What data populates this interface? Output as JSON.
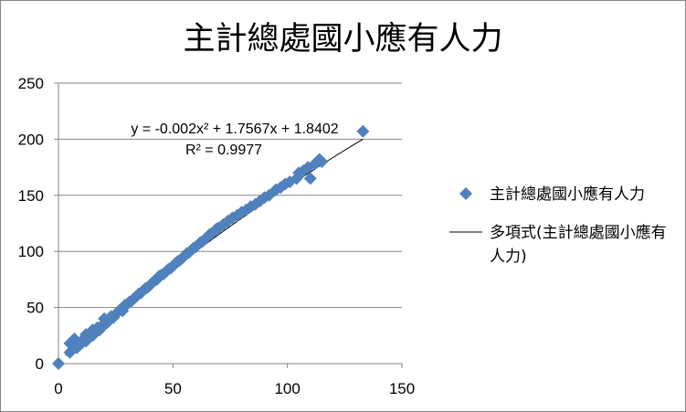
{
  "chart_data": {
    "type": "scatter",
    "title": "主計總處國小應有人力",
    "xlabel": "",
    "ylabel": "",
    "xlim": [
      0,
      150
    ],
    "ylim": [
      0,
      250
    ],
    "x_ticks": [
      "0",
      "50",
      "100",
      "150"
    ],
    "y_ticks": [
      "0",
      "50",
      "100",
      "150",
      "200",
      "250"
    ],
    "grid": "horizontal",
    "legend_position": "right",
    "series": [
      {
        "name": "主計總處國小應有人力",
        "marker": "diamond",
        "color": "#4F81BD",
        "points": [
          [
            0,
            0
          ],
          [
            5,
            10
          ],
          [
            5,
            18
          ],
          [
            6,
            20
          ],
          [
            7,
            22
          ],
          [
            7,
            15
          ],
          [
            8,
            14
          ],
          [
            8,
            18
          ],
          [
            9,
            16
          ],
          [
            10,
            18
          ],
          [
            11,
            22
          ],
          [
            12,
            20
          ],
          [
            12,
            26
          ],
          [
            13,
            24
          ],
          [
            14,
            28
          ],
          [
            15,
            25
          ],
          [
            15,
            30
          ],
          [
            16,
            28
          ],
          [
            17,
            32
          ],
          [
            18,
            30
          ],
          [
            19,
            34
          ],
          [
            20,
            35
          ],
          [
            20,
            40
          ],
          [
            21,
            36
          ],
          [
            22,
            38
          ],
          [
            23,
            42
          ],
          [
            24,
            41
          ],
          [
            25,
            44
          ],
          [
            26,
            46
          ],
          [
            27,
            48
          ],
          [
            28,
            47
          ],
          [
            29,
            52
          ],
          [
            30,
            53
          ],
          [
            31,
            55
          ],
          [
            32,
            56
          ],
          [
            33,
            58
          ],
          [
            34,
            60
          ],
          [
            35,
            62
          ],
          [
            36,
            63
          ],
          [
            37,
            65
          ],
          [
            38,
            67
          ],
          [
            39,
            68
          ],
          [
            40,
            70
          ],
          [
            41,
            72
          ],
          [
            42,
            74
          ],
          [
            43,
            75
          ],
          [
            44,
            78
          ],
          [
            45,
            79
          ],
          [
            46,
            80
          ],
          [
            47,
            82
          ],
          [
            48,
            84
          ],
          [
            49,
            85
          ],
          [
            50,
            87
          ],
          [
            51,
            89
          ],
          [
            52,
            91
          ],
          [
            53,
            92
          ],
          [
            54,
            94
          ],
          [
            55,
            96
          ],
          [
            56,
            98
          ],
          [
            57,
            99
          ],
          [
            58,
            101
          ],
          [
            59,
            103
          ],
          [
            60,
            104
          ],
          [
            61,
            106
          ],
          [
            62,
            108
          ],
          [
            63,
            109
          ],
          [
            64,
            111
          ],
          [
            65,
            113
          ],
          [
            66,
            115
          ],
          [
            67,
            116
          ],
          [
            68,
            118
          ],
          [
            69,
            120
          ],
          [
            70,
            121
          ],
          [
            72,
            124
          ],
          [
            74,
            127
          ],
          [
            76,
            130
          ],
          [
            78,
            132
          ],
          [
            80,
            135
          ],
          [
            82,
            137
          ],
          [
            84,
            140
          ],
          [
            86,
            142
          ],
          [
            88,
            145
          ],
          [
            90,
            148
          ],
          [
            92,
            150
          ],
          [
            95,
            155
          ],
          [
            97,
            157
          ],
          [
            99,
            160
          ],
          [
            101,
            162
          ],
          [
            104,
            165
          ],
          [
            105,
            170
          ],
          [
            107,
            172
          ],
          [
            109,
            175
          ],
          [
            110,
            165
          ],
          [
            112,
            178
          ],
          [
            114,
            182
          ],
          [
            115,
            180
          ],
          [
            133,
            207
          ]
        ]
      },
      {
        "name": "多項式(主計總處國小應有人力)",
        "type": "trendline",
        "color": "#000000",
        "coefficients": {
          "a": -0.002,
          "b": 1.7567,
          "c": 1.8402
        },
        "x_range": [
          3,
          133
        ]
      }
    ],
    "annotations": {
      "equation": "y = -0.002x² + 1.7567x + 1.8402",
      "r_squared": "R² = 0.9977"
    }
  },
  "colors": {
    "marker": "#4F81BD",
    "trendline": "#000000",
    "gridline": "#868686"
  }
}
